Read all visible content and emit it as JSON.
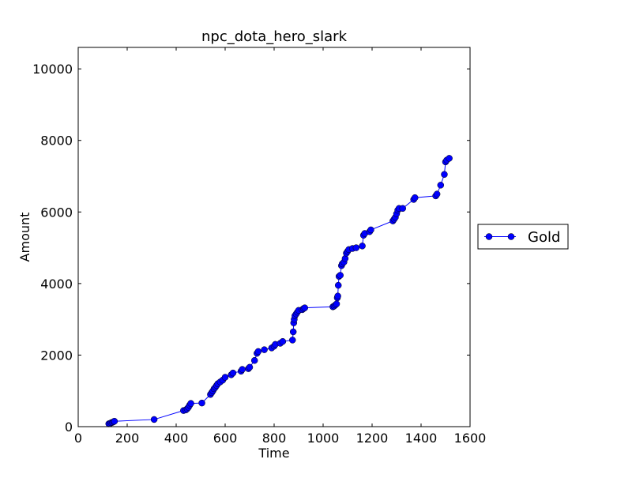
{
  "chart_data": {
    "type": "line",
    "title": "npc_dota_hero_slark",
    "xlabel": "Time",
    "ylabel": "Amount",
    "xlim": [
      0,
      1600
    ],
    "ylim": [
      0,
      10600
    ],
    "xticks": [
      0,
      200,
      400,
      600,
      800,
      1000,
      1200,
      1400,
      1600
    ],
    "yticks": [
      0,
      2000,
      4000,
      6000,
      8000,
      10000
    ],
    "grid": false,
    "legend_position": "right",
    "series": [
      {
        "name": "Gold",
        "color": "#0000ff",
        "marker": "circle",
        "x": [
          125,
          130,
          135,
          140,
          145,
          148,
          310,
          430,
          440,
          445,
          450,
          455,
          460,
          505,
          540,
          545,
          550,
          555,
          560,
          565,
          570,
          580,
          590,
          600,
          625,
          632,
          665,
          670,
          695,
          700,
          720,
          730,
          735,
          760,
          790,
          800,
          805,
          825,
          835,
          875,
          878,
          880,
          882,
          885,
          890,
          895,
          900,
          915,
          920,
          925,
          1040,
          1045,
          1050,
          1055,
          1058,
          1060,
          1062,
          1065,
          1070,
          1075,
          1078,
          1085,
          1090,
          1095,
          1100,
          1105,
          1120,
          1135,
          1160,
          1165,
          1170,
          1190,
          1195,
          1285,
          1290,
          1295,
          1300,
          1305,
          1310,
          1325,
          1370,
          1375,
          1460,
          1465,
          1480,
          1495,
          1500,
          1505,
          1515
        ],
        "y": [
          80,
          90,
          110,
          120,
          140,
          150,
          200,
          450,
          470,
          500,
          540,
          600,
          650,
          660,
          900,
          950,
          1000,
          1060,
          1100,
          1150,
          1200,
          1250,
          1300,
          1380,
          1450,
          1500,
          1550,
          1600,
          1620,
          1660,
          1850,
          2050,
          2100,
          2150,
          2200,
          2250,
          2300,
          2330,
          2380,
          2420,
          2650,
          2900,
          3000,
          3100,
          3150,
          3200,
          3250,
          3270,
          3300,
          3320,
          3350,
          3370,
          3400,
          3430,
          3600,
          3650,
          3950,
          4200,
          4230,
          4500,
          4550,
          4600,
          4700,
          4850,
          4900,
          4950,
          4980,
          5000,
          5050,
          5350,
          5400,
          5450,
          5500,
          5750,
          5800,
          5850,
          5950,
          6050,
          6100,
          6100,
          6350,
          6400,
          6450,
          6500,
          6750,
          7050,
          7400,
          7450,
          7500
        ]
      }
    ]
  }
}
